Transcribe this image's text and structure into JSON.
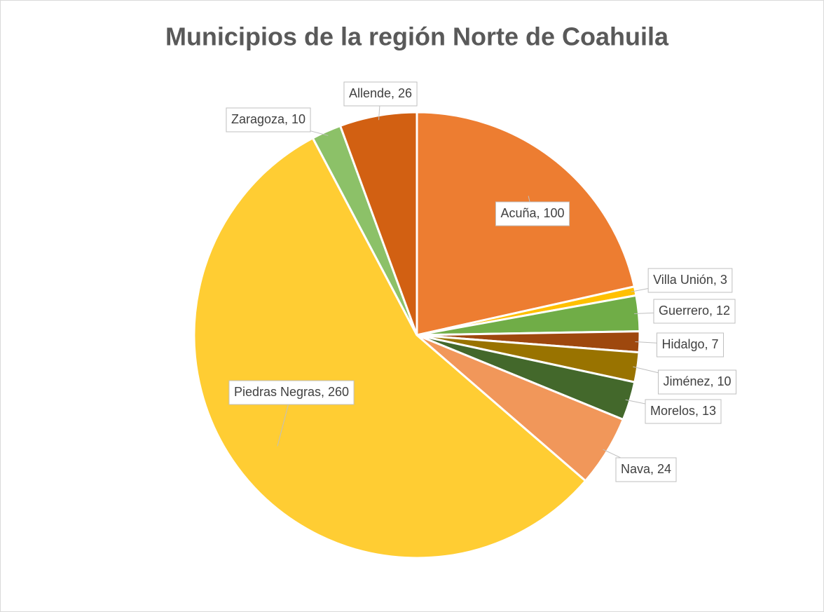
{
  "chart_data": {
    "type": "pie",
    "title": "Municipios de la región Norte de Coahuila",
    "categories": [
      "Acuña",
      "Villa Unión",
      "Guerrero",
      "Hidalgo",
      "Jiménez",
      "Morelos",
      "Nava",
      "Piedras Negras",
      "Zaragoza",
      "Allende"
    ],
    "values": [
      100,
      3,
      12,
      7,
      10,
      13,
      24,
      260,
      10,
      26
    ],
    "value_labels": [
      "Acuña, 100",
      "Villa Unión, 3",
      "Guerrero, 12",
      "Hidalgo, 7",
      "Jiménez, 10",
      "Morelos, 13",
      "Nava, 24",
      "Piedras Negras, 260",
      "Zaragoza, 10",
      "Allende, 26"
    ],
    "colors": [
      "#ED7D31",
      "#FFC000",
      "#70AD47",
      "#9E480E",
      "#997300",
      "#43682B",
      "#F1975A",
      "#FFCD33",
      "#8CC168",
      "#D26012"
    ]
  }
}
